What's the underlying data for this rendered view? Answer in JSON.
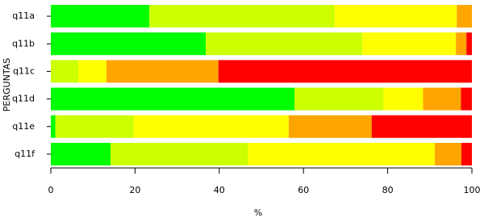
{
  "chart_data": {
    "type": "stacked-barh",
    "xlabel": "%",
    "ylabel": "PERGUNTAS",
    "categories": [
      "q11a",
      "q11b",
      "q11c",
      "q11d",
      "q11e",
      "q11f"
    ],
    "series": [
      {
        "color": "#00ff00",
        "values": [
          23.4,
          36.8,
          0,
          57.9,
          1.1,
          14.2
        ]
      },
      {
        "color": "#ccff00",
        "values": [
          44,
          37.2,
          6.5,
          21.1,
          18.6,
          32.6
        ]
      },
      {
        "color": "#ffff00",
        "values": [
          29,
          22.2,
          6.7,
          9.4,
          36.8,
          44.4
        ]
      },
      {
        "color": "#ffa500",
        "values": [
          3.6,
          2.5,
          26.6,
          9.0,
          19.7,
          6.3
        ]
      },
      {
        "color": "#ff0000",
        "values": [
          0,
          1.3,
          60.2,
          2.6,
          23.8,
          2.5
        ]
      }
    ],
    "xlim": [
      0,
      100
    ],
    "xticks": [
      0,
      20,
      40,
      60,
      80,
      100
    ]
  }
}
